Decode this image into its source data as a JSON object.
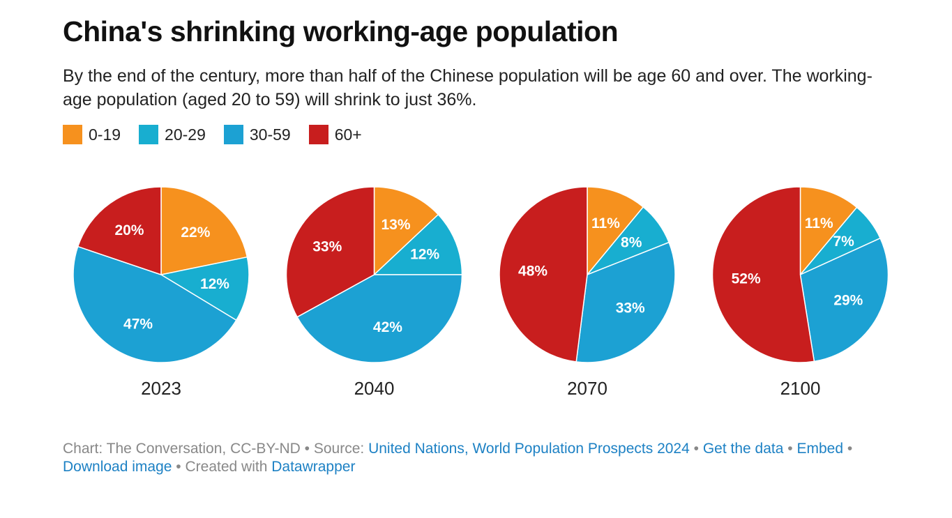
{
  "header": {
    "title": "China's shrinking working-age population",
    "subtitle": "By the end of the century, more than half of the Chinese population will be age 60 and over. The working-age population (aged 20 to 59) will shrink to just 36%."
  },
  "legend": [
    {
      "label": "0-19",
      "color": "#f6911e"
    },
    {
      "label": "20-29",
      "color": "#18aed0"
    },
    {
      "label": "30-59",
      "color": "#1ca1d3"
    },
    {
      "label": "60+",
      "color": "#c81e1e"
    }
  ],
  "chart_data": [
    {
      "type": "pie",
      "title": "2023",
      "slices": [
        {
          "name": "0-19",
          "value": 22,
          "label": "22%",
          "color": "#f6911e"
        },
        {
          "name": "20-29",
          "value": 12,
          "label": "12%",
          "color": "#18aed0"
        },
        {
          "name": "30-59",
          "value": 47,
          "label": "47%",
          "color": "#1ca1d3"
        },
        {
          "name": "60+",
          "value": 20,
          "label": "20%",
          "color": "#c81e1e"
        }
      ]
    },
    {
      "type": "pie",
      "title": "2040",
      "slices": [
        {
          "name": "0-19",
          "value": 13,
          "label": "13%",
          "color": "#f6911e"
        },
        {
          "name": "20-29",
          "value": 12,
          "label": "12%",
          "color": "#18aed0"
        },
        {
          "name": "30-59",
          "value": 42,
          "label": "42%",
          "color": "#1ca1d3"
        },
        {
          "name": "60+",
          "value": 33,
          "label": "33%",
          "color": "#c81e1e"
        }
      ]
    },
    {
      "type": "pie",
      "title": "2070",
      "slices": [
        {
          "name": "0-19",
          "value": 11,
          "label": "11%",
          "color": "#f6911e"
        },
        {
          "name": "20-29",
          "value": 8,
          "label": "8%",
          "color": "#18aed0"
        },
        {
          "name": "30-59",
          "value": 33,
          "label": "33%",
          "color": "#1ca1d3"
        },
        {
          "name": "60+",
          "value": 48,
          "label": "48%",
          "color": "#c81e1e"
        }
      ]
    },
    {
      "type": "pie",
      "title": "2100",
      "slices": [
        {
          "name": "0-19",
          "value": 11,
          "label": "11%",
          "color": "#f6911e"
        },
        {
          "name": "20-29",
          "value": 7,
          "label": "7%",
          "color": "#18aed0"
        },
        {
          "name": "30-59",
          "value": 29,
          "label": "29%",
          "color": "#1ca1d3"
        },
        {
          "name": "60+",
          "value": 52,
          "label": "52%",
          "color": "#c81e1e"
        }
      ]
    }
  ],
  "footer": {
    "chart_credit": "Chart: The Conversation, CC-BY-ND",
    "source_prefix": "Source:",
    "source_link": "United Nations, World Population Prospects 2024",
    "get_data": "Get the data",
    "embed": "Embed",
    "download_image": "Download image",
    "created_with": "Created with",
    "datawrapper": "Datawrapper",
    "separator": "•"
  }
}
